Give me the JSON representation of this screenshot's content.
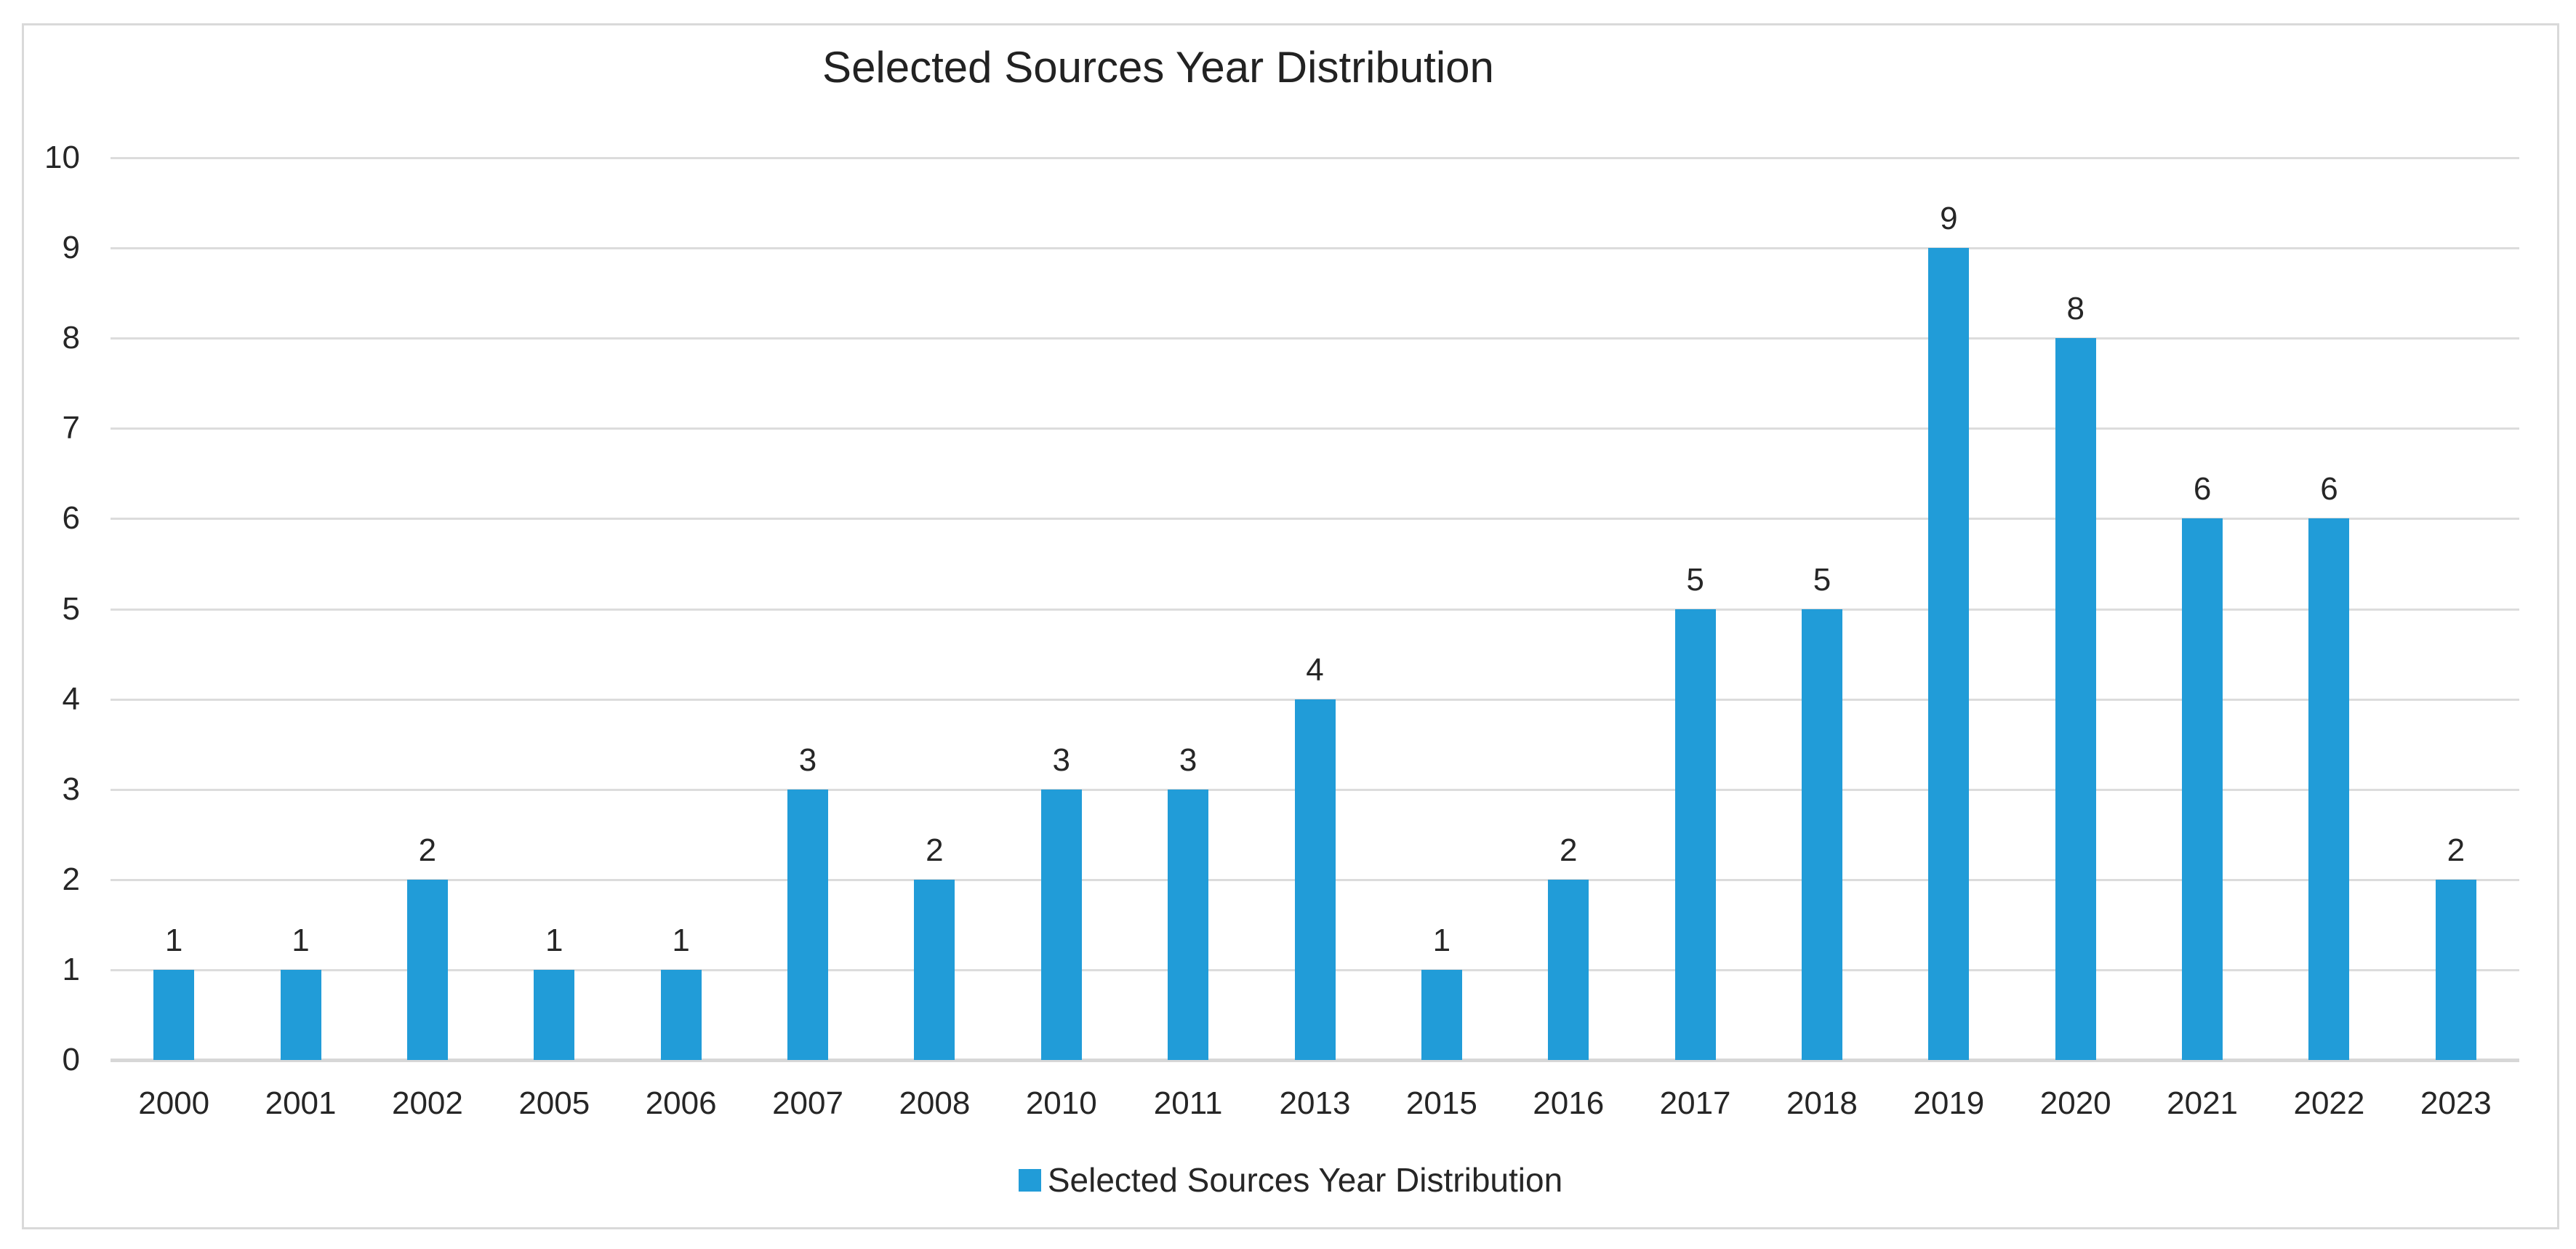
{
  "chart_data": {
    "type": "bar",
    "title": "Selected Sources Year Distribution",
    "series_name": "Selected Sources Year Distribution",
    "categories": [
      "2000",
      "2001",
      "2002",
      "2005",
      "2006",
      "2007",
      "2008",
      "2010",
      "2011",
      "2013",
      "2015",
      "2016",
      "2017",
      "2018",
      "2019",
      "2020",
      "2021",
      "2022",
      "2023"
    ],
    "values": [
      1,
      1,
      2,
      1,
      1,
      3,
      2,
      3,
      3,
      4,
      1,
      2,
      5,
      5,
      9,
      8,
      6,
      6,
      2
    ],
    "xlabel": "",
    "ylabel": "",
    "ylim": [
      0,
      10
    ],
    "y_ticks": [
      0,
      1,
      2,
      3,
      4,
      5,
      6,
      7,
      8,
      9,
      10
    ],
    "grid": true,
    "data_labels_shown": true,
    "legend_position": "bottom",
    "colors": {
      "bar": "#219CD8",
      "gridline": "#DCDCDC",
      "axis_line": "#D7D7D7",
      "text": "#262626",
      "frame_border": "#D9D9D9",
      "background": "#FFFFFF"
    }
  }
}
